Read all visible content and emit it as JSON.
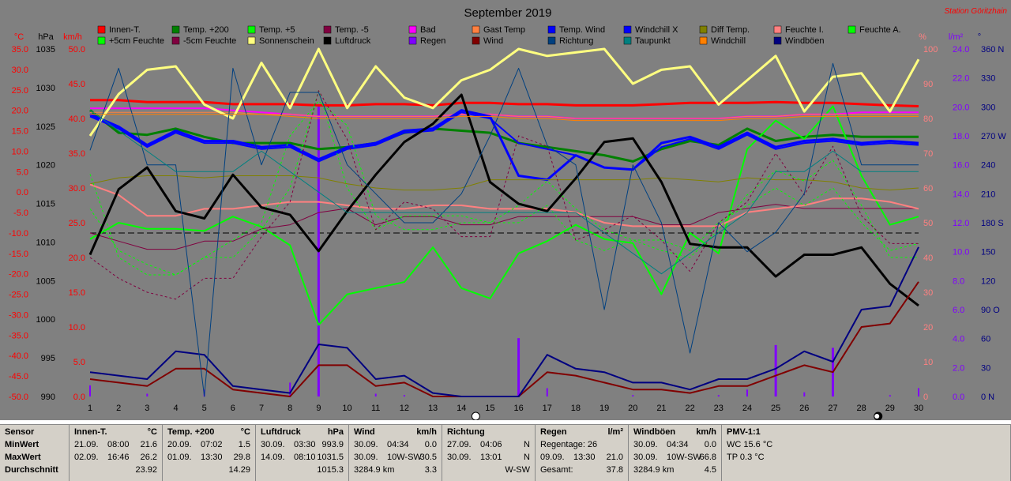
{
  "title": "September 2019",
  "station": "Station Göritzhain",
  "colors": {
    "background": "#808080",
    "temp_axis": "#ff0000",
    "pressure_axis": "#000000",
    "wind_axis": "#ff0000",
    "humidity_axis": "#ff8080",
    "rain_axis": "#8000ff",
    "dir_axis": "#000080"
  },
  "axis_titles": {
    "temp": "°C",
    "pressure": "hPa",
    "wind": "km/h",
    "humidity": "%",
    "rain": "l/m²",
    "dir": "°"
  },
  "legend": [
    {
      "label": "Innen-T.",
      "color": "#ff0000"
    },
    {
      "label": "Temp. +200",
      "color": "#008000"
    },
    {
      "label": "Temp. +5",
      "color": "#00ff00"
    },
    {
      "label": "Temp. -5",
      "color": "#800040"
    },
    {
      "label": "Bad",
      "color": "#ff00ff"
    },
    {
      "label": "Gast Temp",
      "color": "#ff8040"
    },
    {
      "label": "Temp. Wind",
      "color": "#0000ff"
    },
    {
      "label": "Windchill X",
      "color": "#0000ff"
    },
    {
      "label": "Diff Temp.",
      "color": "#808000"
    },
    {
      "label": "Feuchte I.",
      "color": "#ff8080"
    },
    {
      "label": "Feuchte A.",
      "color": "#00ff00"
    },
    {
      "label": "+5cm Feuchte",
      "color": "#00ff00"
    },
    {
      "label": "-5cm Feuchte",
      "color": "#800040"
    },
    {
      "label": "Sonnenschein",
      "color": "#ffff80"
    },
    {
      "label": "Luftdruck",
      "color": "#000000"
    },
    {
      "label": "Regen",
      "color": "#8000ff"
    },
    {
      "label": "Wind",
      "color": "#800000"
    },
    {
      "label": "Richtung",
      "color": "#004080"
    },
    {
      "label": "Taupunkt",
      "color": "#008080"
    },
    {
      "label": "Windchill",
      "color": "#ff8000"
    },
    {
      "label": "Windböen",
      "color": "#000080"
    }
  ],
  "chart_data": {
    "type": "line",
    "x": [
      1,
      2,
      3,
      4,
      5,
      6,
      7,
      8,
      9,
      10,
      11,
      12,
      13,
      14,
      15,
      16,
      17,
      18,
      19,
      20,
      21,
      22,
      23,
      24,
      25,
      26,
      27,
      28,
      29,
      30
    ],
    "xlim": [
      1,
      30
    ],
    "axes": {
      "temp": {
        "ticks": [
          "35.0",
          "30.0",
          "25.0",
          "20.0",
          "15.0",
          "10.0",
          "5.0",
          "0.0",
          "-5.0",
          "-10.0",
          "-15.0",
          "-20.0",
          "-25.0",
          "-30.0",
          "-35.0",
          "-40.0",
          "-45.0",
          "-50.0"
        ],
        "ylim": [
          -50,
          35
        ]
      },
      "pressure": {
        "ticks": [
          "1035",
          "1030",
          "1025",
          "1020",
          "1015",
          "1010",
          "1005",
          "1000",
          "995",
          "990"
        ],
        "ylim": [
          990,
          1037.8
        ]
      },
      "wind": {
        "ticks": [
          "50.0",
          "45.0",
          "40.0",
          "35.0",
          "30.0",
          "25.0",
          "20.0",
          "15.0",
          "10.0",
          "5.0",
          "0.0"
        ],
        "ylim": [
          0,
          50
        ]
      },
      "humidity": {
        "ticks": [
          "100",
          "90",
          "80",
          "70",
          "60",
          "50",
          "40",
          "30",
          "20",
          "10",
          "0"
        ],
        "ylim": [
          0,
          100
        ]
      },
      "rain": {
        "ticks": [
          "24.0",
          "22.0",
          "20.0",
          "18.0",
          "16.0",
          "14.0",
          "12.0",
          "10.0",
          "8.0",
          "6.0",
          "4.0",
          "2.0",
          "0.0"
        ],
        "ylim": [
          0,
          25
        ]
      },
      "dir": {
        "ticks": [
          "360 N",
          "330",
          "300",
          "270 W",
          "240",
          "210",
          "180 S",
          "150",
          "120",
          "90 O",
          "60",
          "30",
          "0 N"
        ],
        "ylim": [
          0,
          360
        ]
      }
    },
    "series": [
      {
        "name": "Innen-T.",
        "axis": "temp",
        "width": 3,
        "values": [
          22.5,
          22.5,
          22.0,
          22.0,
          22.0,
          21.5,
          21.5,
          21.5,
          21.2,
          21.2,
          21.5,
          21.5,
          21.2,
          21.8,
          21.8,
          21.5,
          21.5,
          21.2,
          21.2,
          21.2,
          21.5,
          21.8,
          21.8,
          21.8,
          22.0,
          21.8,
          21.8,
          21.5,
          21.2,
          21.0
        ]
      },
      {
        "name": "Temp. +200",
        "axis": "temp",
        "width": 3,
        "values": [
          20.0,
          14.5,
          14.0,
          15.5,
          13.5,
          12.0,
          12.0,
          12.0,
          10.5,
          11.0,
          12.0,
          14.5,
          15.5,
          15.0,
          14.5,
          12.0,
          11.0,
          10.0,
          9.0,
          7.5,
          10.5,
          12.5,
          11.5,
          15.5,
          12.5,
          13.5,
          14.0,
          13.5,
          13.5,
          13.5
        ]
      },
      {
        "name": "Temp. +5",
        "axis": "temp",
        "width": 2,
        "values": [
          -11.5,
          -7.5,
          -9.0,
          -9.0,
          -9.5,
          -6.0,
          -8.5,
          -13.0,
          -32.5,
          -25.0,
          -23.5,
          -22.0,
          -13.5,
          -23.5,
          -26.0,
          -15.0,
          -12.0,
          -8.0,
          -11.5,
          -12.5,
          -25.0,
          -10.0,
          -15.0,
          10.5,
          17.5,
          13.0,
          21.0,
          4.0,
          -8.0,
          -6.0
        ]
      },
      {
        "name": "Temp. -5",
        "axis": "temp",
        "width": 1,
        "values": [
          -10.0,
          -12.0,
          -14.0,
          -14.0,
          -12.0,
          -12.0,
          -9.0,
          -8.0,
          -5.0,
          -4.0,
          -8.0,
          -6.0,
          -6.0,
          -8.0,
          -8.0,
          -6.0,
          -6.0,
          -6.0,
          -6.0,
          -6.0,
          -8.0,
          -8.0,
          -5.0,
          -4.0,
          -3.0,
          -4.0,
          -4.0,
          -4.0,
          -4.0,
          -4.0
        ]
      },
      {
        "name": "Bad",
        "axis": "temp",
        "width": 2,
        "values": [
          20.5,
          20.5,
          20.5,
          20.5,
          20.5,
          20.0,
          19.5,
          19.0,
          18.5,
          18.5,
          18.5,
          18.5,
          18.5,
          19.0,
          19.0,
          18.5,
          18.5,
          18.0,
          18.0,
          18.0,
          18.0,
          18.0,
          18.0,
          18.5,
          18.5,
          19.0,
          19.0,
          19.5,
          19.5,
          19.5
        ]
      },
      {
        "name": "Gast Temp",
        "axis": "temp",
        "width": 1,
        "values": [
          19.5,
          19.5,
          19.5,
          19.5,
          19.5,
          19.5,
          19.0,
          19.0,
          18.5,
          18.5,
          18.5,
          18.5,
          18.5,
          19.0,
          19.0,
          18.5,
          18.5,
          18.0,
          18.0,
          18.0,
          18.0,
          18.0,
          18.0,
          18.5,
          18.5,
          19.0,
          19.0,
          19.0,
          19.0,
          19.0
        ]
      },
      {
        "name": "Temp. Wind",
        "axis": "temp",
        "width": 3,
        "values": [
          19.0,
          16.0,
          11.5,
          15.0,
          12.5,
          12.5,
          11.0,
          11.5,
          8.0,
          11.0,
          12.0,
          15.0,
          15.5,
          20.0,
          18.5,
          4.0,
          3.0,
          9.0,
          6.0,
          5.5,
          12.0,
          13.5,
          11.0,
          14.5,
          11.0,
          12.5,
          13.0,
          12.0,
          12.5,
          12.0
        ]
      },
      {
        "name": "Windchill X",
        "axis": "temp",
        "width": 2,
        "values": [
          18.5,
          15.5,
          11.0,
          14.5,
          12.0,
          12.0,
          10.5,
          11.0,
          7.5,
          10.5,
          11.5,
          14.5,
          15.0,
          19.5,
          18.0,
          12.0,
          10.5,
          9.0,
          6.0,
          5.5,
          11.0,
          13.0,
          10.5,
          14.0,
          10.5,
          12.0,
          12.5,
          11.5,
          12.0,
          11.5
        ]
      },
      {
        "name": "Diff Temp.",
        "axis": "temp",
        "width": 1,
        "values": [
          2.0,
          3.5,
          4.0,
          4.0,
          3.5,
          4.0,
          4.0,
          4.0,
          3.5,
          2.0,
          1.0,
          0.5,
          0.5,
          1.0,
          3.0,
          3.0,
          3.0,
          3.0,
          3.0,
          3.0,
          3.5,
          3.0,
          2.5,
          3.5,
          3.0,
          3.0,
          2.5,
          1.0,
          0.5,
          1.0
        ]
      },
      {
        "name": "Feuchte I.",
        "axis": "humidity",
        "width": 2,
        "values": [
          61,
          58,
          52,
          52,
          54,
          54,
          55,
          56,
          56,
          55,
          54,
          54,
          55,
          55,
          54,
          54,
          54,
          53,
          50,
          49,
          49,
          49,
          49,
          53,
          54,
          55,
          57,
          57,
          56,
          54
        ]
      },
      {
        "name": "Feuchte A.",
        "axis": "humidity",
        "width": 1,
        "dash": true,
        "values": [
          64,
          40,
          35,
          35,
          40,
          40,
          48,
          60,
          88,
          60,
          48,
          52,
          52,
          52,
          50,
          50,
          55,
          45,
          42,
          45,
          42,
          40,
          48,
          58,
          65,
          62,
          68,
          55,
          40,
          40
        ]
      },
      {
        "name": "+5cm Feuchte",
        "axis": "humidity",
        "width": 1,
        "dash": true,
        "values": [
          54,
          42,
          38,
          35,
          40,
          45,
          50,
          75,
          85,
          78,
          52,
          48,
          48,
          50,
          50,
          55,
          62,
          54,
          48,
          45,
          45,
          42,
          50,
          55,
          60,
          55,
          60,
          50,
          42,
          44
        ]
      },
      {
        "name": "-5cm Feuchte",
        "axis": "humidity",
        "width": 1,
        "dash": true,
        "values": [
          40,
          34,
          30,
          28,
          34,
          34,
          46,
          56,
          88,
          74,
          48,
          56,
          54,
          46,
          46,
          75,
          72,
          45,
          48,
          52,
          45,
          36,
          50,
          56,
          70,
          58,
          72,
          52,
          44,
          44
        ]
      },
      {
        "name": "Sonnenschein",
        "axis": "wind",
        "width": 3,
        "values": [
          37.5,
          43.5,
          47.0,
          47.5,
          42.0,
          40.0,
          48.0,
          41.5,
          50.0,
          41.5,
          47.5,
          43.0,
          41.5,
          45.5,
          47.0,
          50.0,
          49.0,
          49.5,
          50.0,
          45.0,
          47.0,
          47.5,
          42.0,
          45.5,
          49.0,
          41.0,
          46.0,
          46.5,
          41.0,
          48.5
        ]
      },
      {
        "name": "Luftdruck",
        "axis": "pressure",
        "width": 3,
        "values": [
          1009.5,
          1018.5,
          1021.5,
          1015.5,
          1014.5,
          1020.5,
          1016.0,
          1015.0,
          1010.0,
          1015.5,
          1020.5,
          1025.0,
          1027.5,
          1031.5,
          1019.5,
          1016.5,
          1015.5,
          1020.0,
          1025.0,
          1025.5,
          1019.5,
          1011.0,
          1010.5,
          1010.5,
          1006.5,
          1009.5,
          1009.5,
          1010.5,
          1005.5,
          1002.5
        ]
      },
      {
        "name": "Wind",
        "axis": "wind",
        "width": 2,
        "values": [
          2.5,
          2.0,
          1.5,
          4.0,
          4.0,
          1.0,
          0.5,
          0.0,
          4.5,
          4.5,
          1.5,
          2.0,
          0.0,
          0.0,
          0.0,
          0.0,
          3.5,
          3.0,
          2.0,
          1.0,
          1.0,
          0.5,
          1.5,
          1.5,
          3.0,
          4.5,
          3.5,
          10.0,
          10.5,
          16.5
        ]
      },
      {
        "name": "Windböen",
        "axis": "wind",
        "width": 2,
        "values": [
          3.5,
          3.0,
          2.5,
          6.5,
          6.0,
          1.5,
          1.0,
          0.5,
          7.5,
          7.0,
          2.5,
          3.0,
          0.5,
          0.0,
          0.0,
          0.0,
          6.0,
          4.0,
          3.5,
          2.0,
          2.0,
          1.0,
          2.5,
          2.5,
          4.0,
          6.5,
          5.0,
          12.5,
          13.0,
          21.5
        ]
      },
      {
        "name": "Richtung",
        "axis": "dir",
        "width": 1,
        "values": [
          255,
          340,
          240,
          240,
          0,
          340,
          240,
          315,
          315,
          240,
          210,
          180,
          180,
          210,
          270,
          340,
          260,
          240,
          90,
          240,
          180,
          45,
          180,
          150,
          170,
          210,
          345,
          240,
          240,
          240
        ]
      },
      {
        "name": "Taupunkt",
        "axis": "temp",
        "width": 1,
        "values": [
          20.0,
          15.0,
          10.0,
          5.0,
          5.0,
          5.0,
          10.0,
          5.0,
          0.0,
          -5.0,
          -5.0,
          -5.0,
          -5.0,
          -5.0,
          -5.0,
          -5.0,
          -5.0,
          -5.0,
          -10.0,
          -15.0,
          -20.0,
          -15.0,
          -10.0,
          -5.0,
          5.0,
          5.0,
          10.0,
          5.0,
          5.0,
          5.0
        ]
      },
      {
        "name": "Windchill",
        "axis": "temp",
        "width": 1,
        "values": [
          19.0,
          19.0,
          19.0,
          19.0,
          19.0,
          19.0,
          19.0,
          18.5,
          18.0,
          18.0,
          18.0,
          18.0,
          18.0,
          18.5,
          18.5,
          18.0,
          18.0,
          17.5,
          17.5,
          17.5,
          17.5,
          17.5,
          17.5,
          18.0,
          18.0,
          18.5,
          18.5,
          18.5,
          18.5,
          18.5
        ]
      }
    ],
    "rain": {
      "name": "Regen",
      "axis": "rain",
      "values": [
        0.8,
        0,
        0.2,
        0,
        0.5,
        0,
        0,
        1.0,
        21.0,
        0,
        0.2,
        0.1,
        0,
        0,
        0,
        4.2,
        0.6,
        0,
        0,
        0.1,
        0,
        0,
        0.1,
        0.5,
        3.7,
        0.3,
        3.5,
        0,
        0.1,
        0.6
      ]
    },
    "reference_line": {
      "axis": "temp",
      "value": -10.0
    },
    "moon": {
      "full_day": 14,
      "new_day": 29
    }
  },
  "table": [
    {
      "title": "Sensor",
      "unit": "",
      "rows": [
        [
          "MinWert",
          "",
          ""
        ],
        [
          "MaxWert",
          "",
          ""
        ],
        [
          "Durchschnitt",
          "",
          ""
        ]
      ]
    },
    {
      "title": "Innen-T.",
      "unit": "°C",
      "rows": [
        [
          "21.09.",
          "08:00",
          "21.6"
        ],
        [
          "02.09.",
          "16:46",
          "26.2"
        ],
        [
          "",
          "",
          "23.92"
        ]
      ]
    },
    {
      "title": "Temp. +200",
      "unit": "°C",
      "rows": [
        [
          "20.09.",
          "07:02",
          "1.5"
        ],
        [
          "01.09.",
          "13:30",
          "29.8"
        ],
        [
          "",
          "",
          "14.29"
        ]
      ]
    },
    {
      "title": "Luftdruck",
      "unit": "hPa",
      "rows": [
        [
          "30.09.",
          "03:30",
          "993.9"
        ],
        [
          "14.09.",
          "08:10",
          "1031.5"
        ],
        [
          "",
          "",
          "1015.3"
        ]
      ]
    },
    {
      "title": "Wind",
      "unit": "km/h",
      "rows": [
        [
          "30.09.",
          "04:34",
          "0.0"
        ],
        [
          "30.09.",
          "10W-SW",
          "30.5"
        ],
        [
          "3284.9 km",
          "",
          "3.3"
        ]
      ]
    },
    {
      "title": "Richtung",
      "unit": "",
      "rows": [
        [
          "27.09.",
          "04:06",
          "N"
        ],
        [
          "30.09.",
          "13:01",
          "N"
        ],
        [
          "",
          "",
          "W-SW"
        ]
      ]
    },
    {
      "title": "Regen",
      "unit": "l/m²",
      "rows": [
        [
          "Regentage: 26",
          "",
          ""
        ],
        [
          "09.09.",
          "13:30",
          "21.0"
        ],
        [
          "Gesamt:",
          "",
          "37.8"
        ]
      ]
    },
    {
      "title": "Windböen",
      "unit": "km/h",
      "rows": [
        [
          "30.09.",
          "04:34",
          "0.0"
        ],
        [
          "30.09.",
          "10W-SW",
          "66.8"
        ],
        [
          "3284.9 km",
          "",
          "4.5"
        ]
      ]
    },
    {
      "title": "PMV-1:1",
      "unit": "",
      "rows": [
        [
          "WC 15.6 °C",
          "",
          ""
        ],
        [
          "TP 0.3 °C",
          "",
          ""
        ],
        [
          "",
          "",
          ""
        ]
      ]
    }
  ]
}
